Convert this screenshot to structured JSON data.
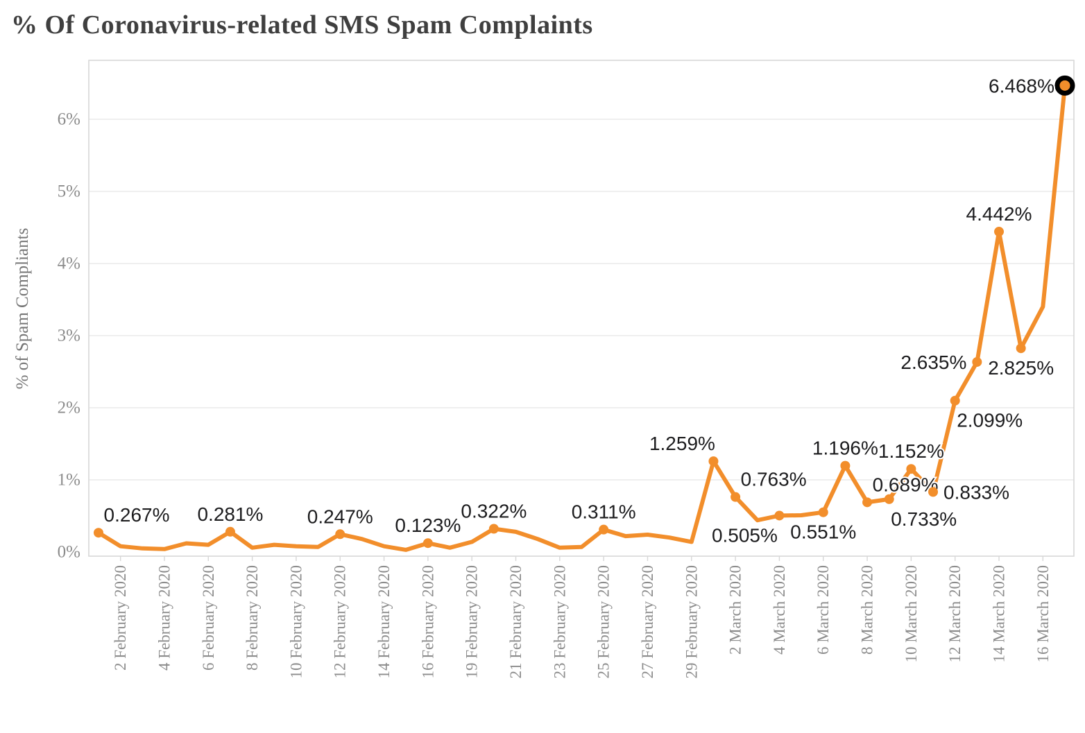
{
  "page": {
    "title": "% Of Coronavirus-related SMS Spam Complaints"
  },
  "chart_data": {
    "type": "line",
    "title": "% Of Coronavirus-related SMS Spam Complaints",
    "xlabel": "",
    "ylabel": "% of Spam Compliants",
    "series_name": "% of coronavirus-related SMS spam complaints",
    "ylim": [
      0,
      6.5
    ],
    "y_tick_labels": [
      "0%",
      "1%",
      "2%",
      "3%",
      "4%",
      "5%",
      "6%"
    ],
    "grid": "horizontal",
    "legend": "none",
    "x_tick_labels": [
      "2 February 2020",
      "4 February 2020",
      "6 February 2020",
      "8 February 2020",
      "10 February 2020",
      "12 February 2020",
      "14 February 2020",
      "16 February 2020",
      "19 February 2020",
      "21 February 2020",
      "23 February 2020",
      "25 February 2020",
      "27 February 2020",
      "29 February 2020",
      "2 March 2020",
      "4 March 2020",
      "6 March 2020",
      "8 March 2020",
      "10 March 2020",
      "12 March 2020",
      "14 March 2020",
      "16 March 2020"
    ],
    "points": [
      {
        "i": 0,
        "value": 0.267,
        "label": "0.267%",
        "label_pos": "above-right"
      },
      {
        "i": 1,
        "value": 0.08,
        "label": null
      },
      {
        "i": 2,
        "value": 0.05,
        "label": null
      },
      {
        "i": 3,
        "value": 0.04,
        "label": null
      },
      {
        "i": 4,
        "value": 0.12,
        "label": null
      },
      {
        "i": 5,
        "value": 0.1,
        "label": null
      },
      {
        "i": 6,
        "value": 0.281,
        "label": "0.281%",
        "label_pos": "above"
      },
      {
        "i": 7,
        "value": 0.06,
        "label": null
      },
      {
        "i": 8,
        "value": 0.1,
        "label": null
      },
      {
        "i": 9,
        "value": 0.08,
        "label": null
      },
      {
        "i": 10,
        "value": 0.07,
        "label": null
      },
      {
        "i": 11,
        "value": 0.247,
        "label": "0.247%",
        "label_pos": "above"
      },
      {
        "i": 12,
        "value": 0.18,
        "label": null
      },
      {
        "i": 13,
        "value": 0.08,
        "label": null
      },
      {
        "i": 14,
        "value": 0.03,
        "label": null
      },
      {
        "i": 15,
        "value": 0.123,
        "label": "0.123%",
        "label_pos": "above"
      },
      {
        "i": 16,
        "value": 0.06,
        "label": null
      },
      {
        "i": 17,
        "value": 0.14,
        "label": null
      },
      {
        "i": 18,
        "value": 0.322,
        "label": "0.322%",
        "label_pos": "above"
      },
      {
        "i": 19,
        "value": 0.28,
        "label": null
      },
      {
        "i": 20,
        "value": 0.18,
        "label": null
      },
      {
        "i": 21,
        "value": 0.06,
        "label": null
      },
      {
        "i": 22,
        "value": 0.07,
        "label": null
      },
      {
        "i": 23,
        "value": 0.311,
        "label": "0.311%",
        "label_pos": "above"
      },
      {
        "i": 24,
        "value": 0.22,
        "label": null
      },
      {
        "i": 25,
        "value": 0.24,
        "label": null
      },
      {
        "i": 26,
        "value": 0.2,
        "label": null
      },
      {
        "i": 27,
        "value": 0.14,
        "label": null
      },
      {
        "i": 28,
        "value": 1.259,
        "label": "1.259%",
        "label_pos": "above-left"
      },
      {
        "i": 29,
        "value": 0.763,
        "label": "0.763%",
        "label_pos": "above-right"
      },
      {
        "i": 30,
        "value": 0.44,
        "label": null
      },
      {
        "i": 31,
        "value": 0.505,
        "label": "0.505%",
        "label_pos": "below-left"
      },
      {
        "i": 32,
        "value": 0.51,
        "label": null
      },
      {
        "i": 33,
        "value": 0.551,
        "label": "0.551%",
        "label_pos": "below"
      },
      {
        "i": 34,
        "value": 1.196,
        "label": "1.196%",
        "label_pos": "above"
      },
      {
        "i": 35,
        "value": 0.689,
        "label": "0.689%",
        "label_pos": "above-right"
      },
      {
        "i": 36,
        "value": 0.733,
        "label": "0.733%",
        "label_pos": "below-right"
      },
      {
        "i": 37,
        "value": 1.152,
        "label": "1.152%",
        "label_pos": "above"
      },
      {
        "i": 38,
        "value": 0.833,
        "label": "0.833%",
        "label_pos": "right"
      },
      {
        "i": 39,
        "value": 2.099,
        "label": "2.099%",
        "label_pos": "below-right"
      },
      {
        "i": 40,
        "value": 2.635,
        "label": "2.635%",
        "label_pos": "left"
      },
      {
        "i": 41,
        "value": 4.442,
        "label": "4.442%",
        "label_pos": "above"
      },
      {
        "i": 42,
        "value": 2.825,
        "label": "2.825%",
        "label_pos": "below"
      },
      {
        "i": 43,
        "value": 3.4,
        "label": null
      },
      {
        "i": 44,
        "value": 6.468,
        "label": "6.468%",
        "label_pos": "left",
        "highlighted": true
      }
    ],
    "colors": {
      "line": "#F28E2B",
      "marker": "#F28E2B",
      "highlight_ring": "#000000",
      "data_label": "#1c1c1e",
      "axis_text": "#8c8c8c",
      "axis_title": "#767676",
      "gridline": "#eaeaea",
      "plot_border": "#d7d7d7",
      "title": "#3f3f3f",
      "background": "#ffffff"
    }
  }
}
